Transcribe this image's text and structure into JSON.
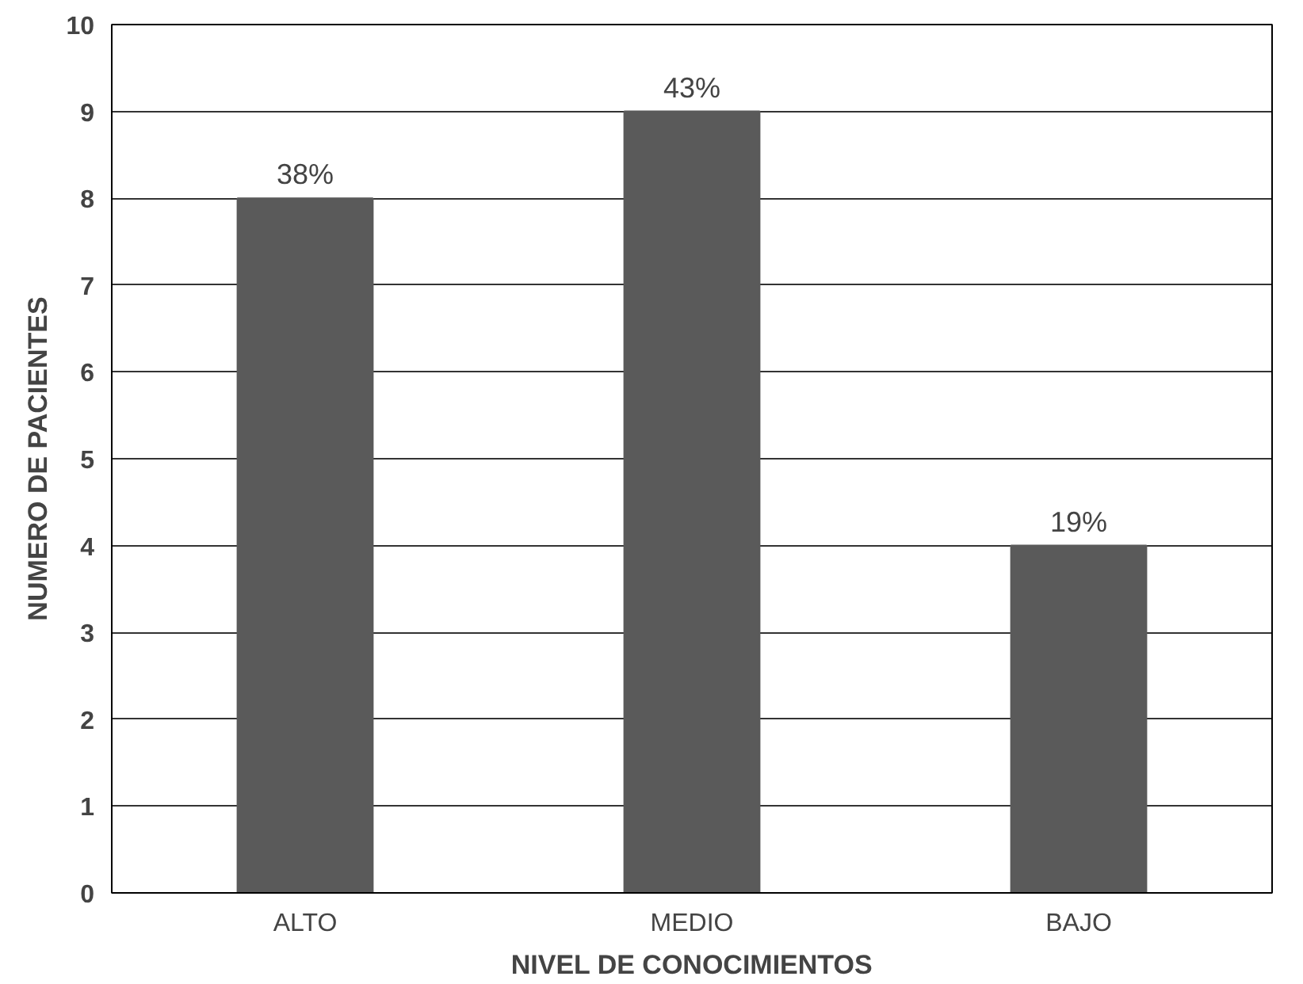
{
  "chart_data": {
    "type": "bar",
    "xlabel": "NIVEL DE CONOCIMIENTOS",
    "ylabel": "NUMERO DE PACIENTES",
    "categories": [
      "ALTO",
      "MEDIO",
      "BAJO"
    ],
    "values": [
      8,
      9,
      4
    ],
    "annotations": [
      {
        "text": "38%",
        "x": "ALTO",
        "y": 8
      },
      {
        "text": "43%",
        "x": "MEDIO",
        "y": 9
      },
      {
        "text": "19%",
        "x": "BAJO",
        "y": 4
      }
    ],
    "color": "#5a5a5a",
    "ylim": [
      0,
      10
    ],
    "yticks": [
      0,
      1,
      2,
      3,
      4,
      5,
      6,
      7,
      8,
      9,
      10
    ],
    "grid": "y"
  }
}
